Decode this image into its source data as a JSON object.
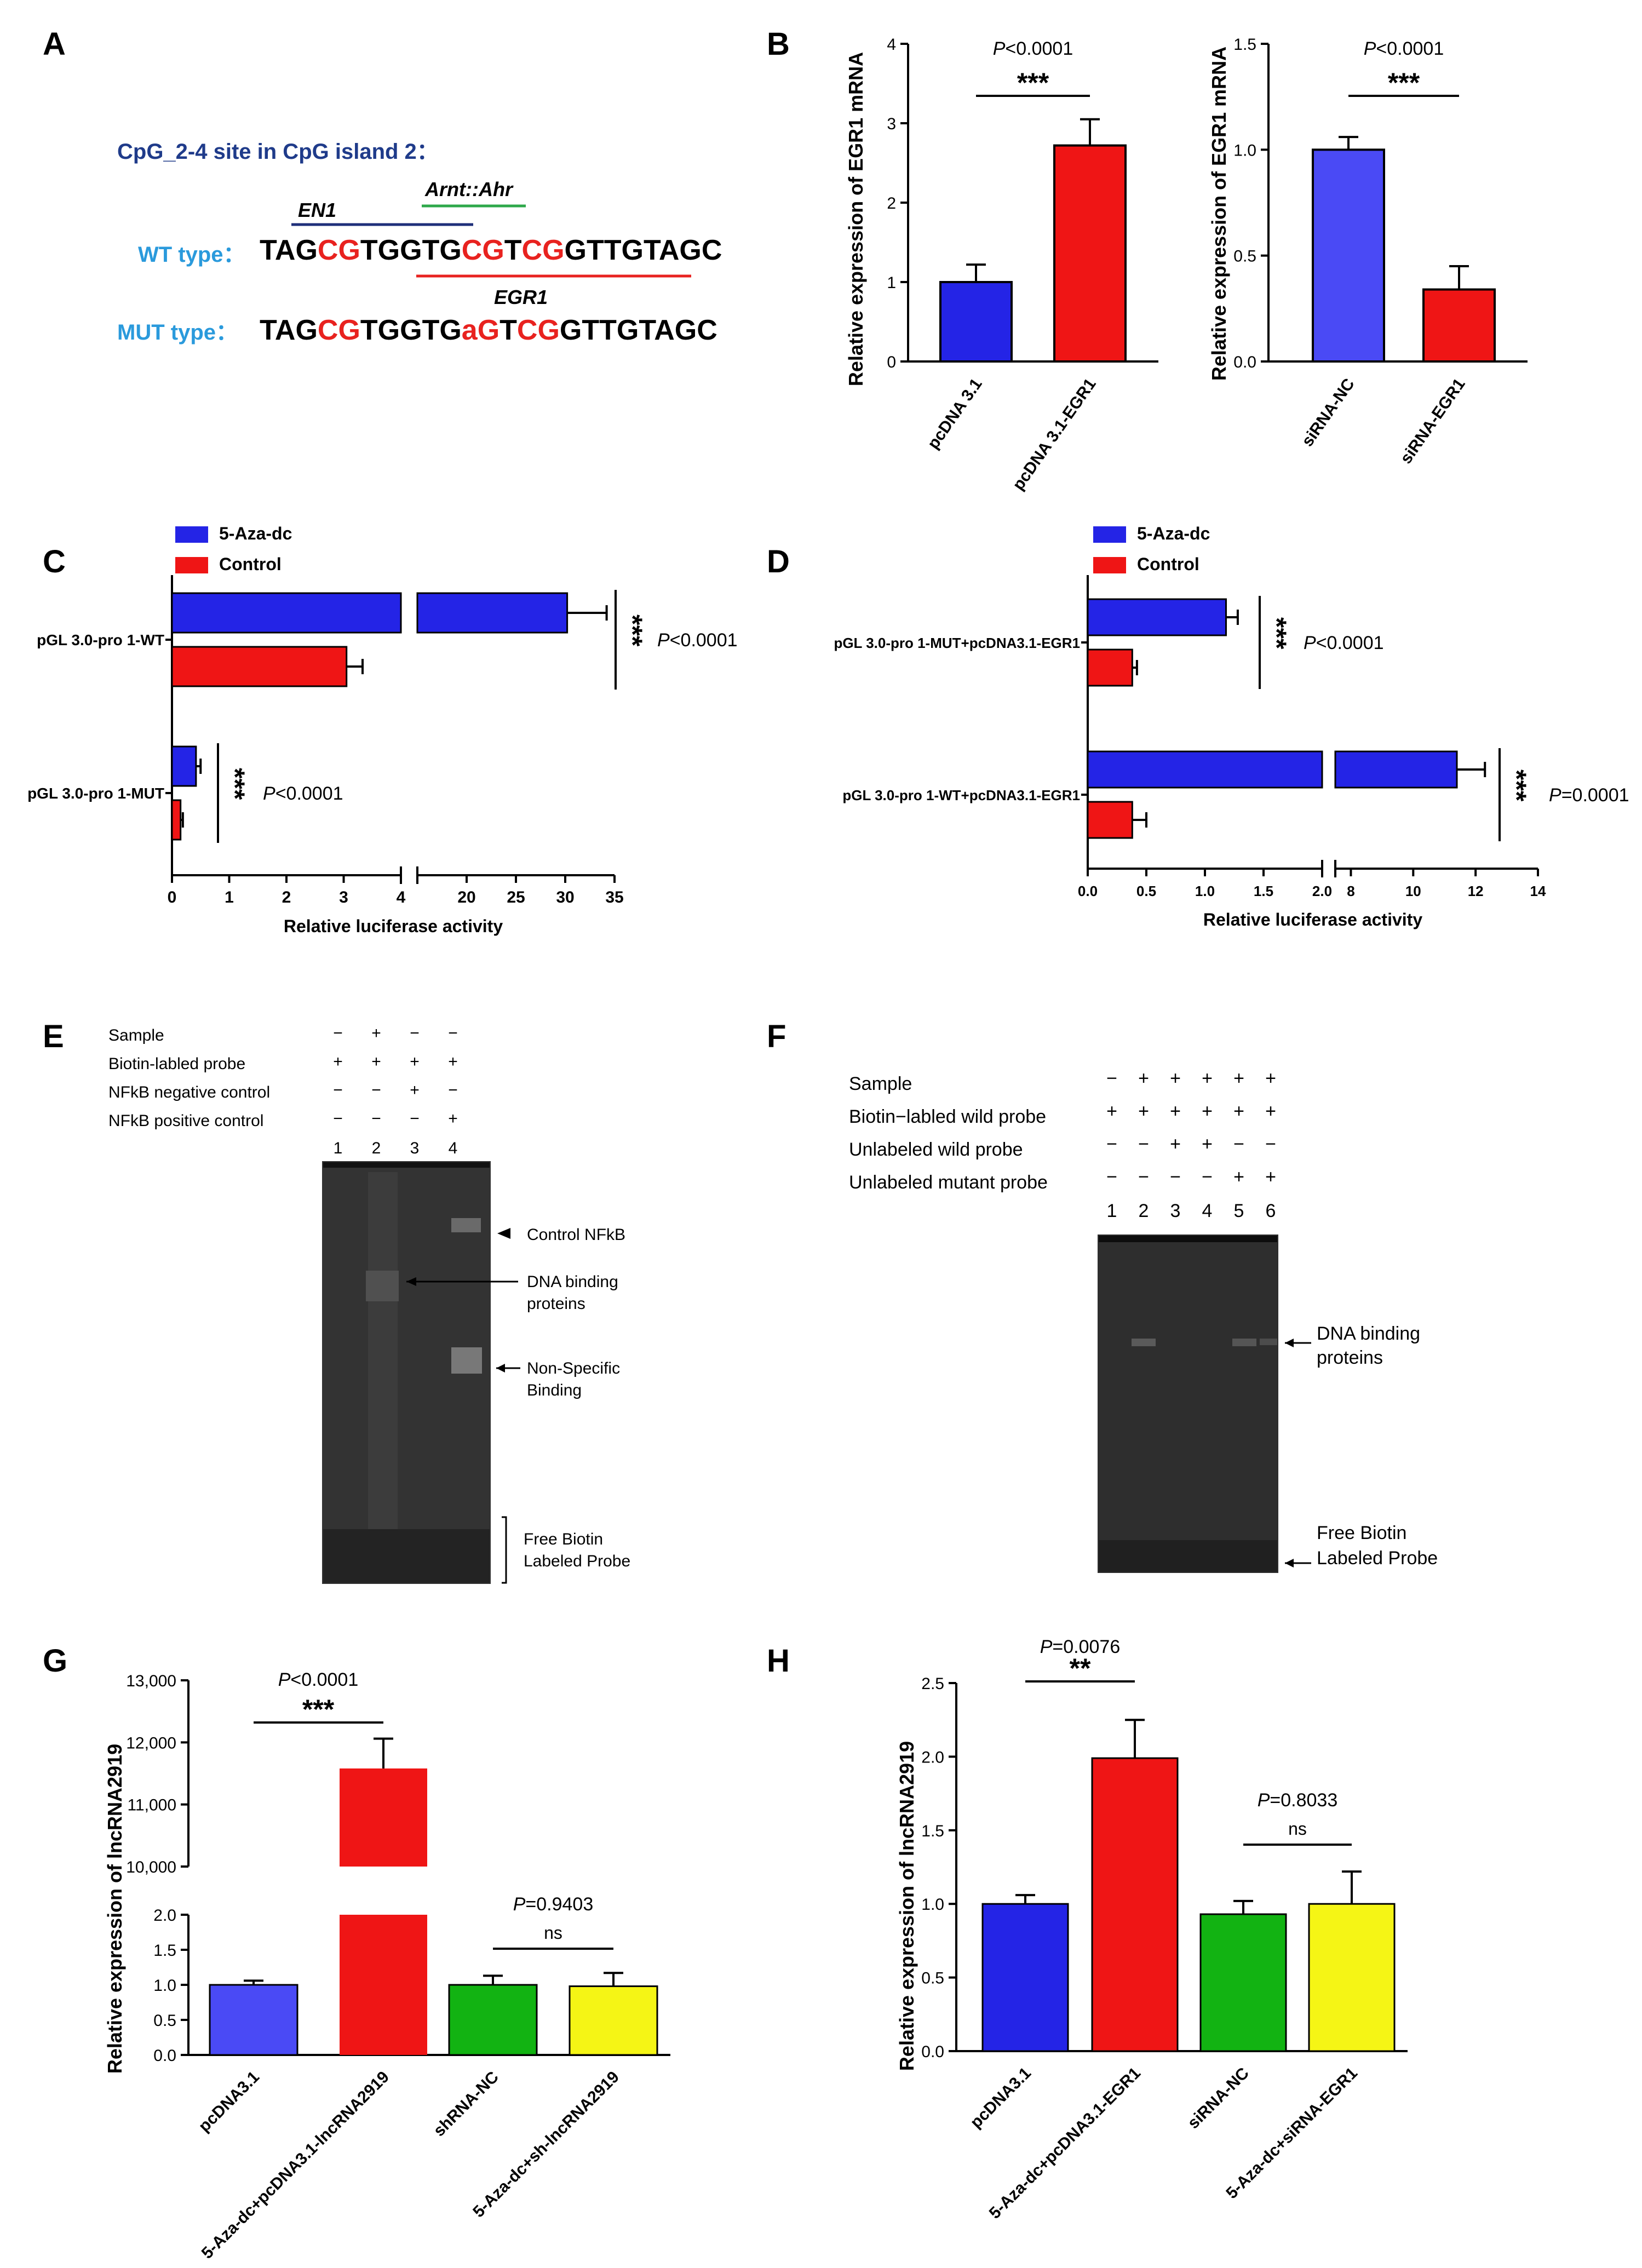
{
  "panels": {
    "A": {
      "letter": "A",
      "title": "CpG_2-4 site in CpG island 2：",
      "wt_label": "WT type：",
      "mut_label": "MUT type：",
      "wt_segments": [
        {
          "t": "TAG",
          "c": "#000000"
        },
        {
          "t": "CG",
          "c": "#e8221f"
        },
        {
          "t": "TGGTG",
          "c": "#000000"
        },
        {
          "t": "CG",
          "c": "#e8221f"
        },
        {
          "t": "T",
          "c": "#000000"
        },
        {
          "t": "CG",
          "c": "#e8221f"
        },
        {
          "t": "GTTGTAGC",
          "c": "#000000"
        }
      ],
      "mut_segments": [
        {
          "t": "TAG",
          "c": "#000000"
        },
        {
          "t": "CG",
          "c": "#e8221f"
        },
        {
          "t": "TGGTG",
          "c": "#000000"
        },
        {
          "t": "aG",
          "c": "#e8221f"
        },
        {
          "t": "T",
          "c": "#000000"
        },
        {
          "t": "CG",
          "c": "#e8221f"
        },
        {
          "t": "GTTGTAGC",
          "c": "#000000"
        }
      ],
      "sites": [
        {
          "name": "EN1",
          "color": "#1f2f7a"
        },
        {
          "name": "Arnt::Ahr",
          "color": "#2ea84a"
        },
        {
          "name": "EGR1",
          "color": "#e8221f"
        }
      ]
    },
    "E": {
      "letter": "E",
      "rows": [
        {
          "label": "Sample",
          "signs": [
            "−",
            "+",
            "−",
            "−"
          ]
        },
        {
          "label": "Biotin-labled probe",
          "signs": [
            "+",
            "+",
            "+",
            "+"
          ]
        },
        {
          "label": "NFkB negative control",
          "signs": [
            "−",
            "−",
            "+",
            "−"
          ]
        },
        {
          "label": "NFkB positive control",
          "signs": [
            "−",
            "−",
            "−",
            "+"
          ]
        }
      ],
      "lanes": [
        "1",
        "2",
        "3",
        "4"
      ],
      "annotations": [
        "Control NFkB",
        "DNA binding",
        "proteins",
        "Non-Specific",
        "Binding",
        "Free Biotin",
        "Labeled Probe"
      ]
    },
    "F": {
      "letter": "F",
      "rows": [
        {
          "label": "Sample",
          "signs": [
            "−",
            "+",
            "+",
            "+",
            "+",
            "+"
          ]
        },
        {
          "label": "Biotin−labled wild probe",
          "signs": [
            "+",
            "+",
            "+",
            "+",
            "+",
            "+"
          ]
        },
        {
          "label": "Unlabeled wild probe",
          "signs": [
            "−",
            "−",
            "+",
            "+",
            "−",
            "−"
          ]
        },
        {
          "label": "Unlabeled mutant probe",
          "signs": [
            "−",
            "−",
            "−",
            "−",
            "+",
            "+"
          ]
        }
      ],
      "lanes": [
        "1",
        "2",
        "3",
        "4",
        "5",
        "6"
      ],
      "annotations": [
        "DNA binding",
        "proteins",
        "Free Biotin",
        "Labeled Probe"
      ]
    }
  },
  "chart_data": [
    {
      "id": "B1",
      "letter": "B",
      "type": "bar",
      "ylabel": "Relative expression of EGR1 mRNA",
      "categories": [
        "pcDNA 3.1",
        "pcDNA 3.1-EGR1"
      ],
      "values": [
        1.0,
        2.72
      ],
      "errors": [
        0.22,
        0.33
      ],
      "colors": [
        "#2424e6",
        "#ef1515"
      ],
      "ylim": [
        0,
        4
      ],
      "yticks": [
        "0",
        "1",
        "2",
        "3",
        "4"
      ],
      "comparison": {
        "p_prefix": "P",
        "p_rest": "<0.0001",
        "stars": "***"
      }
    },
    {
      "id": "B2",
      "letter": "",
      "type": "bar",
      "ylabel": "Relative expression of EGR1 mRNA",
      "categories": [
        "siRNA-NC",
        "siRNA-EGR1"
      ],
      "values": [
        1.0,
        0.34
      ],
      "errors": [
        0.06,
        0.11
      ],
      "colors": [
        "#4a4af5",
        "#ef1515"
      ],
      "ylim": [
        0,
        1.5
      ],
      "yticks": [
        "0.0",
        "0.5",
        "1.0",
        "1.5"
      ],
      "comparison": {
        "p_prefix": "P",
        "p_rest": "<0.0001",
        "stars": "***"
      }
    },
    {
      "id": "C",
      "letter": "C",
      "type": "bar",
      "orientation": "horizontal",
      "xlabel": "Relative luciferase activity",
      "legend": [
        {
          "name": "5-Aza-dc",
          "color": "#2424e6"
        },
        {
          "name": "Control",
          "color": "#ef1515"
        }
      ],
      "groups": [
        "pGL 3.0-pro 1-WT",
        "pGL 3.0-pro 1-MUT"
      ],
      "series": [
        {
          "name": "5-Aza-dc",
          "values": [
            30.2,
            0.42
          ],
          "errors": [
            4.0,
            0.08
          ]
        },
        {
          "name": "Control",
          "values": [
            3.05,
            0.15
          ],
          "errors": [
            0.28,
            0.04
          ]
        }
      ],
      "axis_break": [
        4,
        15
      ],
      "xticks_low": [
        "0",
        "1",
        "2",
        "3",
        "4"
      ],
      "xticks_high": [
        "20",
        "25",
        "30",
        "35"
      ],
      "comparisons": [
        {
          "p_prefix": "P",
          "p_rest": "<0.0001",
          "stars": "***"
        },
        {
          "p_prefix": "P",
          "p_rest": "<0.0001",
          "stars": "***"
        }
      ]
    },
    {
      "id": "D",
      "letter": "D",
      "type": "bar",
      "orientation": "horizontal",
      "xlabel": "Relative luciferase activity",
      "legend": [
        {
          "name": "5-Aza-dc",
          "color": "#2424e6"
        },
        {
          "name": "Control",
          "color": "#ef1515"
        }
      ],
      "groups": [
        "pGL 3.0-pro 1-MUT+pcDNA3.1-EGR1",
        "pGL 3.0-pro 1-WT+pcDNA3.1-EGR1"
      ],
      "series": [
        {
          "name": "5-Aza-dc",
          "values": [
            1.18,
            11.4
          ],
          "errors": [
            0.1,
            0.9
          ]
        },
        {
          "name": "Control",
          "values": [
            0.38,
            0.38
          ],
          "errors": [
            0.04,
            0.12
          ]
        }
      ],
      "axis_break": [
        2,
        7.5
      ],
      "xticks_low": [
        "0.0",
        "0.5",
        "1.0",
        "1.5",
        "2.0"
      ],
      "xticks_high": [
        "8",
        "10",
        "12",
        "14"
      ],
      "comparisons": [
        {
          "p_prefix": "P",
          "p_rest": "<0.0001",
          "stars": "***"
        },
        {
          "p_prefix": "P",
          "p_rest": "=0.0001",
          "stars": "***"
        }
      ]
    },
    {
      "id": "G",
      "letter": "G",
      "type": "bar",
      "ylabel": "Relative expression of lncRNA2919",
      "categories": [
        "pcDNA3.1",
        "5-Aza-dc+pcDNA3.1-lncRNA2919",
        "shRNA-NC",
        "5-Aza-dc+sh-lncRNA2919"
      ],
      "values": [
        1.0,
        11580,
        1.0,
        0.98
      ],
      "errors": [
        0.06,
        480,
        0.13,
        0.19
      ],
      "colors": [
        "#4a4af5",
        "#ef1515",
        "#12b312",
        "#f5f515"
      ],
      "axis_break": [
        2.0,
        10000
      ],
      "yticks_low": [
        "0.0",
        "0.5",
        "1.0",
        "1.5",
        "2.0"
      ],
      "yticks_high": [
        "10,000",
        "11,000",
        "12,000",
        "13,000"
      ],
      "comparisons": [
        {
          "p_prefix": "P",
          "p_rest": "<0.0001",
          "stars": "***"
        },
        {
          "p_prefix": "P",
          "p_rest": "=0.9403",
          "stars": "ns"
        }
      ]
    },
    {
      "id": "H",
      "letter": "H",
      "type": "bar",
      "ylabel": "Relative expression of lncRNA2919",
      "categories": [
        "pcDNA3.1",
        "5-Aza-dc+pcDNA3.1-EGR1",
        "siRNA-NC",
        "5-Aza-dc+siRNA-EGR1"
      ],
      "values": [
        1.0,
        1.99,
        0.93,
        1.0
      ],
      "errors": [
        0.06,
        0.26,
        0.09,
        0.22
      ],
      "colors": [
        "#2424e6",
        "#ef1515",
        "#12b312",
        "#f5f515"
      ],
      "ylim": [
        0,
        2.5
      ],
      "yticks": [
        "0.0",
        "0.5",
        "1.0",
        "1.5",
        "2.0",
        "2.5"
      ],
      "comparisons": [
        {
          "p_prefix": "P",
          "p_rest": "=0.0076",
          "stars": "**"
        },
        {
          "p_prefix": "P",
          "p_rest": "=0.8033",
          "stars": "ns"
        }
      ]
    }
  ]
}
